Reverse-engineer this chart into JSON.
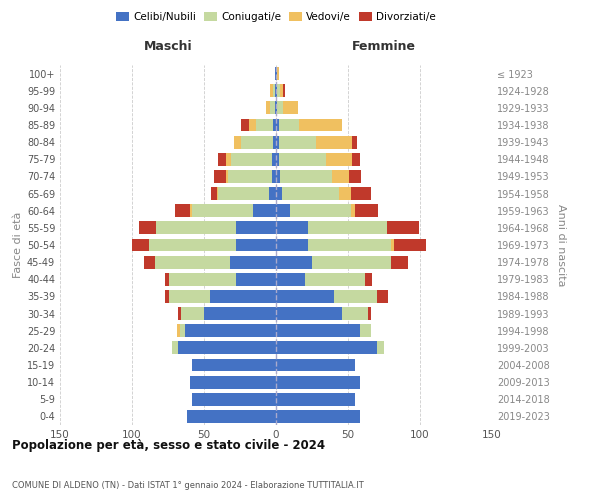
{
  "age_groups": [
    "100+",
    "95-99",
    "90-94",
    "85-89",
    "80-84",
    "75-79",
    "70-74",
    "65-69",
    "60-64",
    "55-59",
    "50-54",
    "45-49",
    "40-44",
    "35-39",
    "30-34",
    "25-29",
    "20-24",
    "15-19",
    "10-14",
    "5-9",
    "0-4"
  ],
  "birth_years": [
    "≤ 1923",
    "1924-1928",
    "1929-1933",
    "1934-1938",
    "1939-1943",
    "1944-1948",
    "1949-1953",
    "1954-1958",
    "1959-1963",
    "1964-1968",
    "1969-1973",
    "1974-1978",
    "1979-1983",
    "1984-1988",
    "1989-1993",
    "1994-1998",
    "1999-2003",
    "2004-2008",
    "2009-2013",
    "2014-2018",
    "2019-2023"
  ],
  "colors": {
    "celibe": "#4472c4",
    "coniugato": "#c5d9a0",
    "vedovo": "#f0c060",
    "divorziato": "#c0392b"
  },
  "maschi": {
    "celibe": [
      1,
      1,
      1,
      2,
      2,
      3,
      3,
      5,
      16,
      28,
      28,
      32,
      28,
      46,
      50,
      63,
      68,
      58,
      60,
      58,
      62
    ],
    "coniugato": [
      0,
      1,
      3,
      12,
      22,
      28,
      30,
      35,
      42,
      55,
      60,
      52,
      46,
      28,
      16,
      4,
      4,
      0,
      0,
      0,
      0
    ],
    "vedovo": [
      0,
      2,
      3,
      5,
      5,
      4,
      2,
      1,
      2,
      0,
      0,
      0,
      0,
      0,
      0,
      2,
      0,
      0,
      0,
      0,
      0
    ],
    "divorziato": [
      0,
      0,
      0,
      5,
      0,
      5,
      8,
      4,
      10,
      12,
      12,
      8,
      3,
      3,
      2,
      0,
      0,
      0,
      0,
      0,
      0
    ]
  },
  "femmine": {
    "nubile": [
      1,
      1,
      1,
      2,
      2,
      2,
      3,
      4,
      10,
      22,
      22,
      25,
      20,
      40,
      46,
      58,
      70,
      55,
      58,
      55,
      58
    ],
    "coniugata": [
      0,
      2,
      4,
      14,
      26,
      33,
      36,
      40,
      42,
      55,
      58,
      55,
      42,
      30,
      18,
      8,
      5,
      0,
      0,
      0,
      0
    ],
    "vedova": [
      1,
      2,
      10,
      30,
      25,
      18,
      12,
      8,
      3,
      0,
      2,
      0,
      0,
      0,
      0,
      0,
      0,
      0,
      0,
      0,
      0
    ],
    "divorziata": [
      0,
      1,
      0,
      0,
      3,
      5,
      8,
      14,
      16,
      22,
      22,
      12,
      5,
      8,
      2,
      0,
      0,
      0,
      0,
      0,
      0
    ]
  },
  "xlim": 150,
  "title": "Popolazione per età, sesso e stato civile - 2024",
  "subtitle": "COMUNE DI ALDENO (TN) - Dati ISTAT 1° gennaio 2024 - Elaborazione TUTTITALIA.IT",
  "ylabel_left": "Fasce di età",
  "ylabel_right": "Anni di nascita",
  "xlabel_maschi": "Maschi",
  "xlabel_femmine": "Femmine",
  "bg_color": "#ffffff",
  "grid_color": "#cccccc",
  "bar_height": 0.75
}
